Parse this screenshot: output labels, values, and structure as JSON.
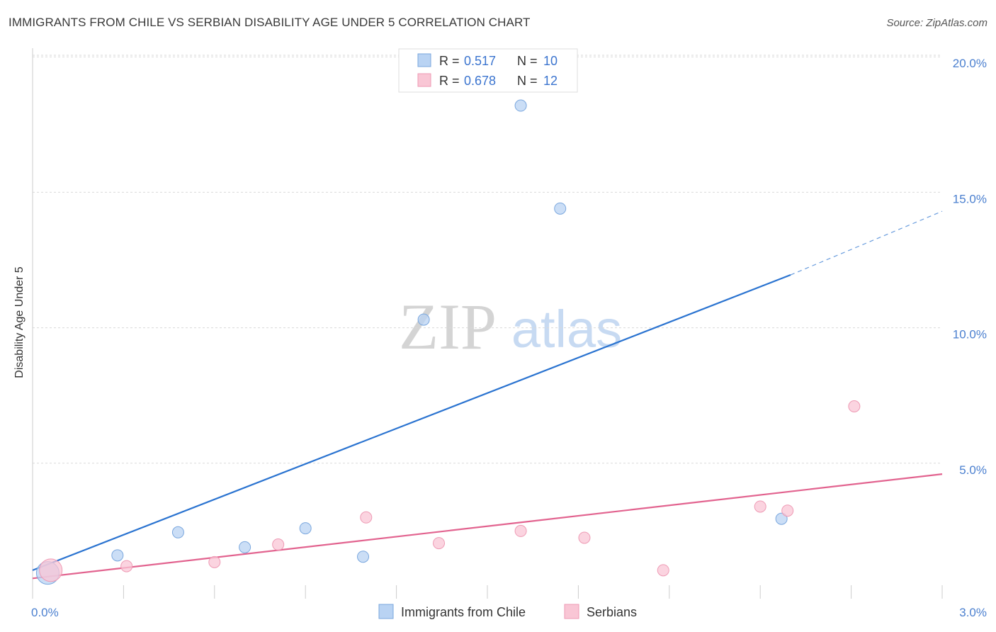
{
  "title": "IMMIGRANTS FROM CHILE VS SERBIAN DISABILITY AGE UNDER 5 CORRELATION CHART",
  "source": "Source: ZipAtlas.com",
  "watermark": {
    "zip": "ZIP",
    "atlas": "atlas"
  },
  "colors": {
    "blue_fill": "#b9d3f3",
    "blue_stroke": "#7aa7de",
    "blue_line": "#2a73d0",
    "pink_fill": "#f9c6d5",
    "pink_stroke": "#ee9ab4",
    "pink_line": "#e2638f",
    "grid": "#d9d9d9",
    "tick_text": "#4a7fcf"
  },
  "legend": {
    "rows": [
      {
        "r_label": "R = ",
        "r_value": "0.517",
        "n_label": "N = ",
        "n_value": "10"
      },
      {
        "r_label": "R = ",
        "r_value": "0.678",
        "n_label": "N = ",
        "n_value": "12"
      }
    ]
  },
  "chart_data": {
    "type": "scatter",
    "title": "IMMIGRANTS FROM CHILE VS SERBIAN DISABILITY AGE UNDER 5 CORRELATION CHART",
    "xlabel": "",
    "ylabel": "Disability Age Under 5",
    "xlim": [
      0,
      3.0
    ],
    "ylim": [
      0,
      20.5
    ],
    "x_tick_labels": [
      "0.0%",
      "3.0%"
    ],
    "y_ticks": [
      5,
      10,
      15,
      20
    ],
    "y_tick_labels": [
      "5.0%",
      "10.0%",
      "15.0%",
      "20.0%"
    ],
    "grid": true,
    "series": [
      {
        "name": "Immigrants from Chile",
        "color": "blue",
        "points": [
          {
            "x": 0.05,
            "y": 0.95,
            "size": "large"
          },
          {
            "x": 0.28,
            "y": 1.6
          },
          {
            "x": 0.48,
            "y": 2.45
          },
          {
            "x": 0.7,
            "y": 1.9
          },
          {
            "x": 0.9,
            "y": 2.6
          },
          {
            "x": 1.09,
            "y": 1.55
          },
          {
            "x": 1.29,
            "y": 10.3
          },
          {
            "x": 1.61,
            "y": 18.2
          },
          {
            "x": 1.74,
            "y": 14.4
          },
          {
            "x": 2.47,
            "y": 2.95
          }
        ],
        "trend": {
          "x0": 0.0,
          "y0": 1.05,
          "x1": 2.5,
          "y1": 11.95,
          "x_dash_end": 3.0,
          "y_dash_end": 14.3
        }
      },
      {
        "name": "Serbians",
        "color": "pink",
        "points": [
          {
            "x": 0.06,
            "y": 1.05,
            "size": "large"
          },
          {
            "x": 0.31,
            "y": 1.2
          },
          {
            "x": 0.6,
            "y": 1.35
          },
          {
            "x": 0.81,
            "y": 2.0
          },
          {
            "x": 1.1,
            "y": 3.0
          },
          {
            "x": 1.34,
            "y": 2.05
          },
          {
            "x": 1.61,
            "y": 2.5
          },
          {
            "x": 1.82,
            "y": 2.25
          },
          {
            "x": 2.08,
            "y": 1.05
          },
          {
            "x": 2.4,
            "y": 3.4
          },
          {
            "x": 2.49,
            "y": 3.25
          },
          {
            "x": 2.71,
            "y": 7.1
          }
        ],
        "trend": {
          "x0": 0.0,
          "y0": 0.75,
          "x1": 3.0,
          "y1": 4.6
        }
      }
    ]
  }
}
